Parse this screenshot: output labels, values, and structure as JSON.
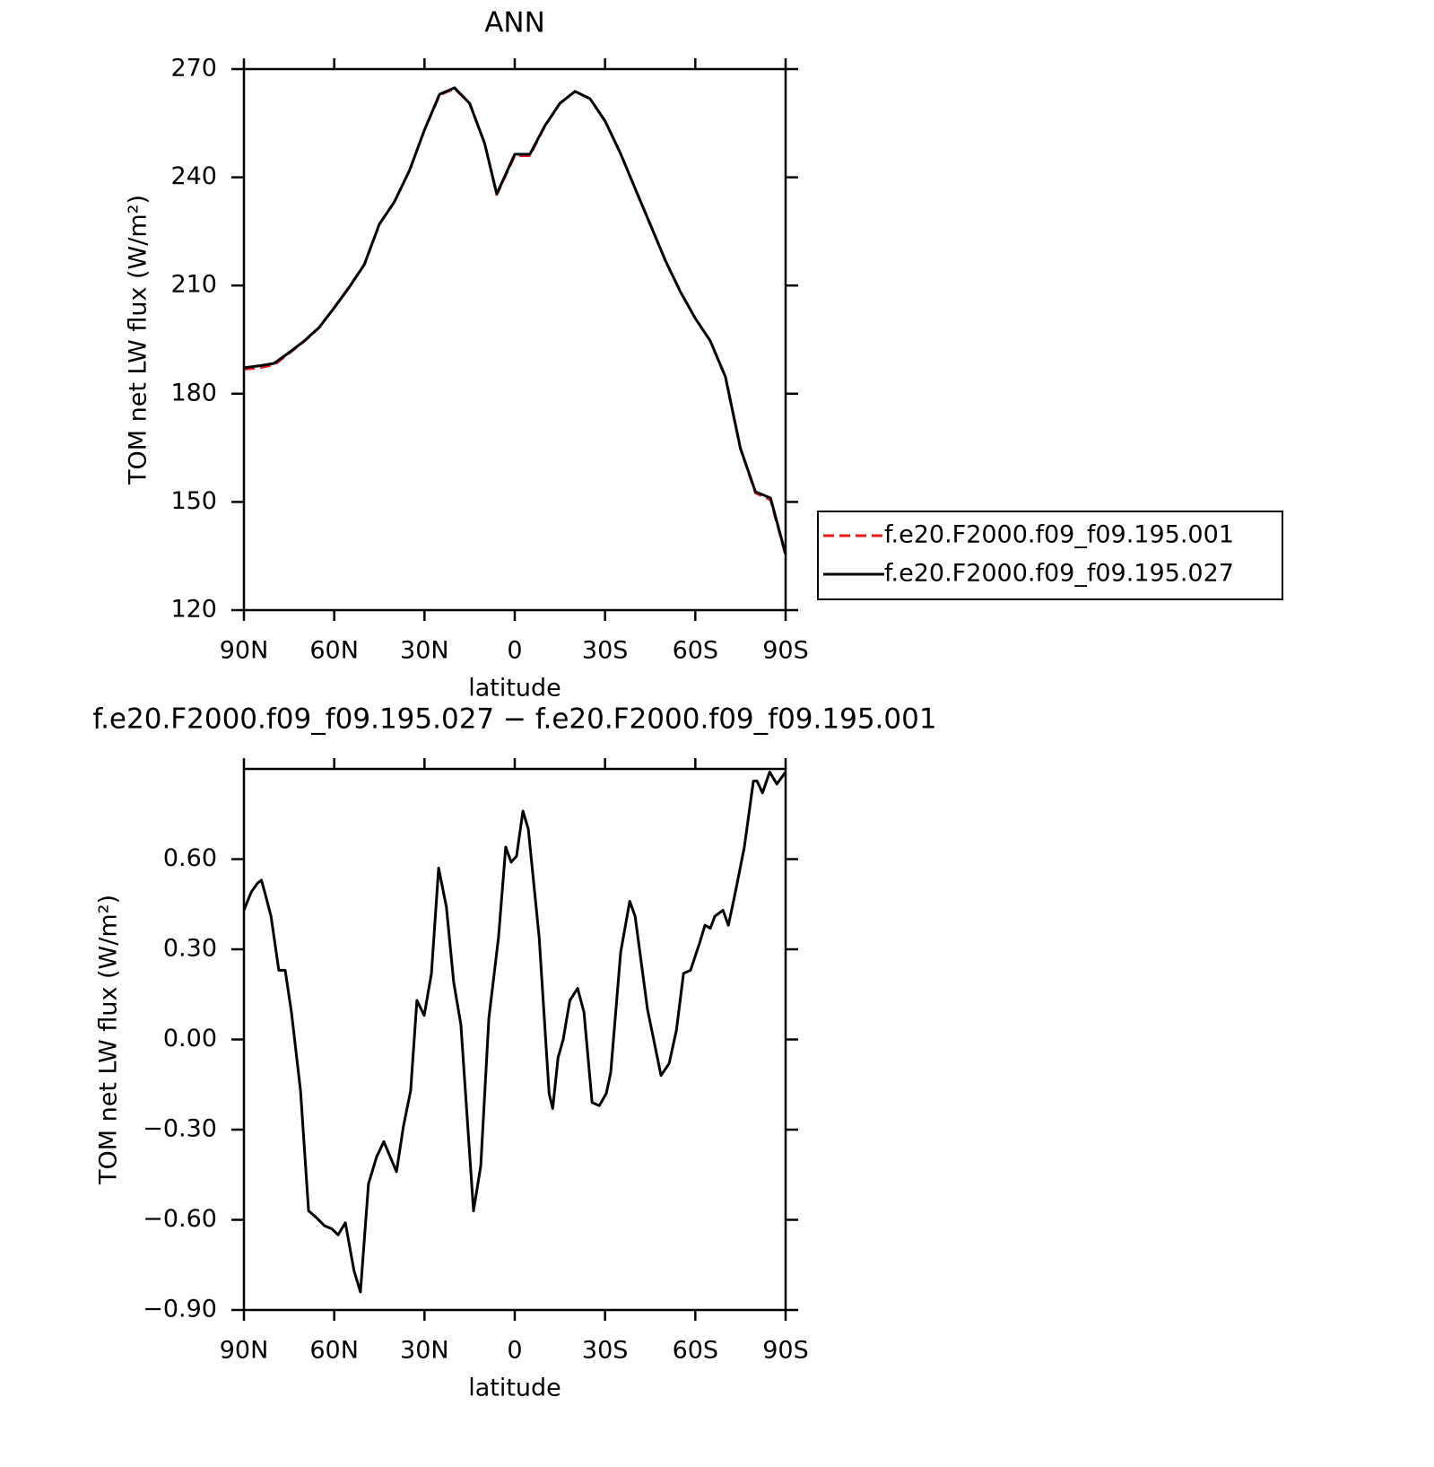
{
  "chart_data": [
    {
      "type": "line",
      "title": "ANN",
      "xlabel": "latitude",
      "ylabel": "TOM net LW flux (W/m²)",
      "xlim": [
        90,
        -90
      ],
      "ylim": [
        120,
        270
      ],
      "xticks": [
        {
          "value": 90,
          "label": "90N"
        },
        {
          "value": 60,
          "label": "60N"
        },
        {
          "value": 30,
          "label": "30N"
        },
        0,
        {
          "value": -30,
          "label": "30S"
        },
        {
          "value": -60,
          "label": "60S"
        },
        {
          "value": -90,
          "label": "90S"
        }
      ],
      "yticks": [
        120,
        150,
        180,
        210,
        240,
        270
      ],
      "legend": "right",
      "x": [
        90,
        85,
        80,
        75,
        70,
        65,
        60,
        55,
        50,
        45,
        40,
        35,
        30,
        25,
        20,
        15,
        10,
        6,
        0,
        -5,
        -10,
        -15,
        -20,
        -25,
        -30,
        -35,
        -40,
        -45,
        -50,
        -55,
        -60,
        -65,
        -70,
        -75,
        -80,
        -85,
        -90
      ],
      "series": [
        {
          "name": "f.e20.F2000.f09_f09.195.001",
          "color": "#e41a1c",
          "linestyle": "dashed",
          "values": [
            186.8,
            187.2,
            188.0,
            191.2,
            194.5,
            198.3,
            203.9,
            209.6,
            215.8,
            227.0,
            233.2,
            241.9,
            253.1,
            262.8,
            264.6,
            260.5,
            249.4,
            235.2,
            246.0,
            246.0,
            254.2,
            260.5,
            263.8,
            261.8,
            255.6,
            246.9,
            236.9,
            227.0,
            217.0,
            208.3,
            200.9,
            194.6,
            184.6,
            164.7,
            152.5,
            150.6,
            135.3
          ]
        },
        {
          "name": "f.e20.F2000.f09_f09.195.027",
          "color": "#000000",
          "linestyle": "solid",
          "values": [
            187.2,
            187.7,
            188.4,
            191.4,
            194.6,
            198.4,
            203.8,
            209.5,
            215.8,
            227.0,
            233.2,
            241.9,
            253.1,
            263.0,
            264.8,
            260.5,
            249.4,
            235.4,
            246.4,
            246.4,
            254.3,
            260.5,
            263.8,
            261.8,
            255.6,
            246.9,
            236.9,
            227.0,
            217.0,
            208.3,
            200.9,
            194.6,
            184.7,
            164.8,
            152.8,
            151.1,
            135.5
          ]
        }
      ]
    },
    {
      "type": "line",
      "title": "f.e20.F2000.f09_f09.195.027 − f.e20.F2000.f09_f09.195.001",
      "xlabel": "latitude",
      "ylabel": "TOM net LW flux (W/m²)",
      "xlim": [
        90,
        -90
      ],
      "ylim": [
        -0.9,
        0.9
      ],
      "xticks": [
        {
          "value": 90,
          "label": "90N"
        },
        {
          "value": 60,
          "label": "60N"
        },
        {
          "value": 30,
          "label": "30N"
        },
        0,
        {
          "value": -30,
          "label": "30S"
        },
        {
          "value": -60,
          "label": "60S"
        },
        {
          "value": -90,
          "label": "90S"
        }
      ],
      "yticks": [
        {
          "value": -0.9,
          "label": "−0.90"
        },
        {
          "value": -0.6,
          "label": "−0.60"
        },
        {
          "value": -0.3,
          "label": "−0.30"
        },
        {
          "value": 0,
          "label": "0.00"
        },
        {
          "value": 0.3,
          "label": "0.30"
        },
        {
          "value": 0.6,
          "label": "0.60"
        }
      ],
      "x": [
        90,
        87.6,
        85.5,
        84.2,
        83.1,
        81,
        78.4,
        76.3,
        74.2,
        71.2,
        68.5,
        66.2,
        63.2,
        60.8,
        58.7,
        56.3,
        53.4,
        51.3,
        48.6,
        45.9,
        43.5,
        39.3,
        37,
        34.6,
        32.5,
        30.1,
        27.7,
        25.3,
        22.7,
        20.3,
        17.9,
        13.7,
        11.3,
        8.6,
        5.4,
        3,
        1.2,
        -0.6,
        -2.7,
        -4.5,
        -8.1,
        -11.4,
        -12.6,
        -14.4,
        -16.1,
        -18.3,
        -20.9,
        -23,
        -25.7,
        -28.1,
        -30.4,
        -31.9,
        -35.2,
        -38.2,
        -40,
        -44.1,
        -48.6,
        -51.3,
        -53.7,
        -56.1,
        -58.4,
        -61.4,
        -63.2,
        -65,
        -66.5,
        -69.2,
        -71,
        -73.3,
        -76.3,
        -79.3,
        -80.5,
        -82.3,
        -84.7,
        -87.1,
        -90
      ],
      "series": [
        {
          "color": "#000000",
          "linestyle": "solid",
          "values": [
            0.43,
            0.49,
            0.52,
            0.53,
            0.49,
            0.41,
            0.23,
            0.23,
            0.09,
            -0.17,
            -0.57,
            -0.59,
            -0.62,
            -0.63,
            -0.65,
            -0.61,
            -0.77,
            -0.84,
            -0.48,
            -0.39,
            -0.34,
            -0.44,
            -0.29,
            -0.17,
            0.13,
            0.08,
            0.22,
            0.57,
            0.44,
            0.19,
            0.05,
            -0.57,
            -0.42,
            0.07,
            0.34,
            0.64,
            0.59,
            0.61,
            0.76,
            0.7,
            0.34,
            -0.18,
            -0.23,
            -0.06,
            0.0,
            0.13,
            0.17,
            0.09,
            -0.21,
            -0.22,
            -0.18,
            -0.11,
            0.29,
            0.46,
            0.41,
            0.1,
            -0.12,
            -0.08,
            0.03,
            0.22,
            0.23,
            0.32,
            0.38,
            0.37,
            0.41,
            0.43,
            0.38,
            0.49,
            0.64,
            0.86,
            0.86,
            0.82,
            0.89,
            0.85,
            0.89
          ]
        }
      ]
    }
  ]
}
